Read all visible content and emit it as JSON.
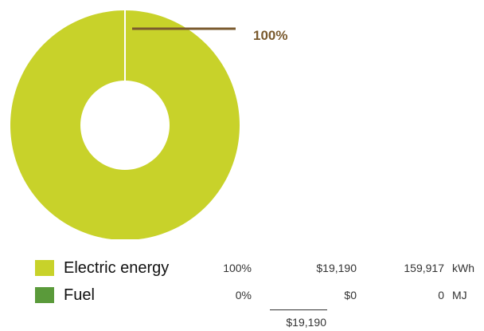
{
  "chart_data": {
    "type": "pie",
    "donut": true,
    "title": "",
    "slices": [
      {
        "name": "Electric energy",
        "value": 100,
        "color": "#c8d22a"
      },
      {
        "name": "Fuel",
        "value": 0,
        "color": "#5a9a3a"
      }
    ],
    "callout": {
      "label": "100%",
      "color": "#7a5a2e"
    }
  },
  "legend": {
    "rows": [
      {
        "label": "Electric energy",
        "percent": "100%",
        "cost": "$19,190",
        "quantity": "159,917",
        "unit": "kWh",
        "color": "#c8d22a"
      },
      {
        "label": "Fuel",
        "percent": "0%",
        "cost": "$0",
        "quantity": "0",
        "unit": "MJ",
        "color": "#5a9a3a"
      }
    ],
    "total_cost": "$19,190"
  }
}
